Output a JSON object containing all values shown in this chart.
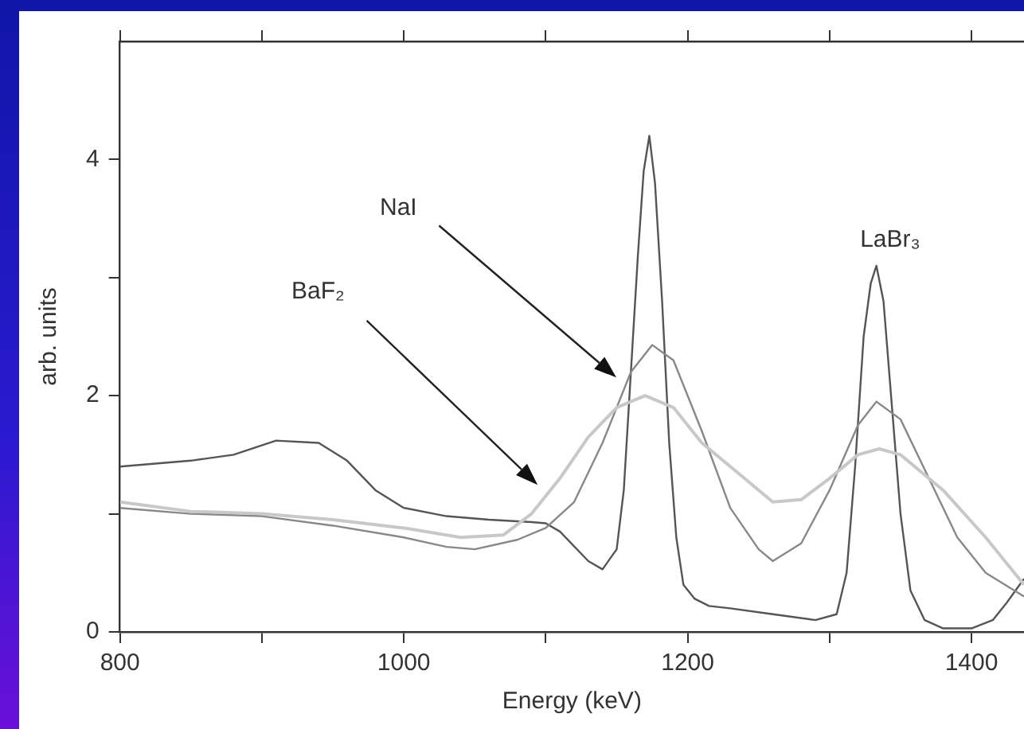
{
  "chart_data": {
    "type": "line",
    "xlabel": "Energy (keV)",
    "ylabel": "arb. units",
    "xlim": [
      800,
      1437
    ],
    "ylim": [
      0,
      5
    ],
    "xticks": [
      800,
      {
        "value": 900,
        "label": null
      },
      1000,
      {
        "value": 1100,
        "label": null
      },
      1200,
      {
        "value": 1300,
        "label": null
      },
      1400
    ],
    "yticks": [
      0,
      {
        "value": 1,
        "label": null
      },
      2,
      {
        "value": 3,
        "label": null
      },
      4
    ],
    "grid": false,
    "legend": false,
    "marker": "none",
    "line_style": "solid",
    "series": [
      {
        "color": "#c8c8c8",
        "x": [
          800,
          850,
          900,
          950,
          1000,
          1040,
          1070,
          1090,
          1110,
          1130,
          1150,
          1170,
          1190,
          1210,
          1240,
          1260,
          1280,
          1300,
          1320,
          1335,
          1350,
          1380,
          1410,
          1437
        ],
        "values": [
          1.1,
          1.02,
          1.0,
          0.95,
          0.88,
          0.8,
          0.82,
          1.0,
          1.3,
          1.65,
          1.9,
          2.0,
          1.9,
          1.6,
          1.3,
          1.1,
          1.12,
          1.3,
          1.5,
          1.55,
          1.5,
          1.2,
          0.8,
          0.4
        ]
      },
      {
        "color": "#888888",
        "x": [
          800,
          850,
          900,
          950,
          1000,
          1030,
          1050,
          1080,
          1100,
          1120,
          1140,
          1160,
          1175,
          1190,
          1210,
          1230,
          1250,
          1260,
          1280,
          1300,
          1320,
          1333,
          1350,
          1370,
          1390,
          1410,
          1437
        ],
        "values": [
          1.05,
          1.0,
          0.98,
          0.9,
          0.8,
          0.72,
          0.7,
          0.78,
          0.88,
          1.1,
          1.6,
          2.2,
          2.43,
          2.3,
          1.7,
          1.05,
          0.7,
          0.6,
          0.75,
          1.2,
          1.75,
          1.95,
          1.8,
          1.3,
          0.8,
          0.5,
          0.3
        ]
      },
      {
        "color": "#555555",
        "x": [
          800,
          850,
          880,
          910,
          940,
          960,
          980,
          1000,
          1030,
          1060,
          1090,
          1100,
          1110,
          1130,
          1140,
          1150,
          1155,
          1160,
          1165,
          1169,
          1173,
          1177,
          1182,
          1187,
          1192,
          1197,
          1205,
          1215,
          1230,
          1260,
          1290,
          1305,
          1312,
          1318,
          1324,
          1329,
          1333,
          1338,
          1344,
          1350,
          1357,
          1367,
          1380,
          1400,
          1415,
          1425,
          1437
        ],
        "values": [
          1.4,
          1.45,
          1.5,
          1.62,
          1.6,
          1.45,
          1.2,
          1.05,
          0.98,
          0.95,
          0.93,
          0.92,
          0.85,
          0.6,
          0.53,
          0.7,
          1.2,
          2.2,
          3.2,
          3.9,
          4.2,
          3.8,
          2.8,
          1.6,
          0.8,
          0.4,
          0.28,
          0.22,
          0.2,
          0.15,
          0.1,
          0.15,
          0.5,
          1.4,
          2.5,
          2.95,
          3.1,
          2.8,
          1.9,
          1.0,
          0.35,
          0.1,
          0.03,
          0.03,
          0.1,
          0.25,
          0.45
        ]
      }
    ],
    "annotations": [
      "NaI",
      "BaF₂",
      "LaBr₃"
    ]
  }
}
